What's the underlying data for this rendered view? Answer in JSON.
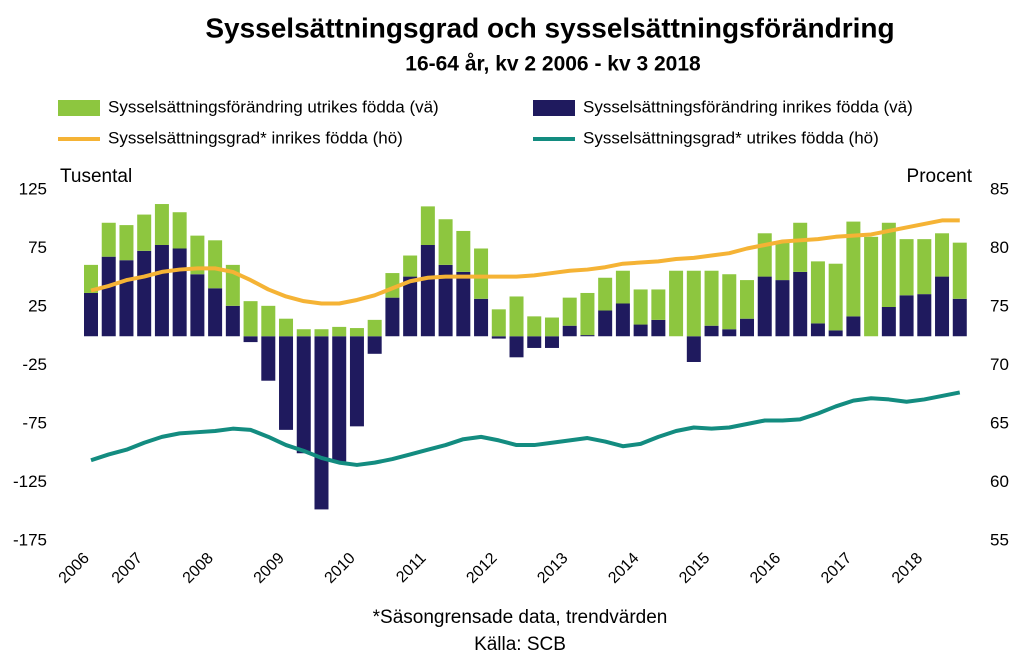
{
  "chart_data": {
    "type": "bar",
    "title": "Sysselsättningsgrad och sysselsättningsförändring",
    "subtitle": "16-64 år, kv 2 2006 - kv 3 2018",
    "y_label": "Tusental",
    "y2_label": "Procent",
    "footnote": "*Säsongrensade data, trendvärden",
    "source": "Källa: SCB",
    "categories": [
      "2006",
      null,
      null,
      "2007",
      null,
      null,
      null,
      "2008",
      null,
      null,
      null,
      "2009",
      null,
      null,
      null,
      "2010",
      null,
      null,
      null,
      "2011",
      null,
      null,
      null,
      "2012",
      null,
      null,
      null,
      "2013",
      null,
      null,
      null,
      "2014",
      null,
      null,
      null,
      "2015",
      null,
      null,
      null,
      "2016",
      null,
      null,
      null,
      "2017",
      null,
      null,
      null,
      "2018",
      null,
      null
    ],
    "ylim": [
      -175,
      125
    ],
    "yticks": [
      -175,
      -125,
      -75,
      -25,
      25,
      75,
      125
    ],
    "y2lim": [
      55,
      85
    ],
    "y2ticks": [
      55,
      60,
      65,
      70,
      75,
      80,
      85
    ],
    "grid": false,
    "series": [
      {
        "name": "Sysselsättningsförändring utrikes födda (vä)",
        "type": "bar",
        "color": "#8dc63f",
        "values": [
          24,
          29,
          30,
          31,
          35,
          31,
          33,
          41,
          35,
          30,
          26,
          15,
          6,
          6,
          8,
          7,
          14,
          21,
          18,
          33,
          39,
          35,
          43,
          23,
          34,
          17,
          16,
          24,
          36,
          28,
          28,
          30,
          26,
          56,
          56,
          47,
          47,
          33,
          37,
          32,
          42,
          53,
          57,
          81,
          85,
          72,
          48,
          47,
          37,
          48
        ]
      },
      {
        "name": "Sysselsättningsförändring inrikes födda (vä)",
        "type": "bar",
        "color": "#1f1a5e",
        "values": [
          37,
          68,
          65,
          73,
          78,
          75,
          53,
          41,
          26,
          -5,
          -38,
          -80,
          -100,
          -148,
          -107,
          -77,
          -15,
          33,
          51,
          78,
          61,
          55,
          32,
          -2,
          -18,
          -10,
          -10,
          9,
          1,
          22,
          28,
          10,
          14,
          0,
          -22,
          9,
          6,
          15,
          51,
          48,
          55,
          11,
          5,
          17,
          0,
          25,
          35,
          36,
          51,
          32
        ]
      },
      {
        "name": "Sysselsättningsgrad* inrikes födda (hö)",
        "type": "line",
        "axis": "y2",
        "color": "#f5b335",
        "values": [
          76.4,
          76.8,
          77.3,
          77.6,
          78.0,
          78.2,
          78.3,
          78.3,
          78.0,
          77.3,
          76.5,
          75.9,
          75.5,
          75.3,
          75.3,
          75.6,
          76.0,
          76.6,
          77.2,
          77.5,
          77.6,
          77.6,
          77.6,
          77.6,
          77.6,
          77.7,
          77.9,
          78.1,
          78.2,
          78.4,
          78.7,
          78.8,
          78.9,
          79.1,
          79.2,
          79.4,
          79.6,
          80.0,
          80.3,
          80.6,
          80.7,
          80.8,
          81.0,
          81.1,
          81.2,
          81.5,
          81.8,
          82.1,
          82.4,
          82.4
        ]
      },
      {
        "name": "Sysselsättningsgrad* utrikes födda (hö)",
        "type": "line",
        "axis": "y2",
        "color": "#138c80",
        "values": [
          61.9,
          62.4,
          62.8,
          63.4,
          63.9,
          64.2,
          64.3,
          64.4,
          64.6,
          64.5,
          63.9,
          63.2,
          62.7,
          62.1,
          61.7,
          61.5,
          61.7,
          62.0,
          62.4,
          62.8,
          63.2,
          63.7,
          63.9,
          63.6,
          63.2,
          63.2,
          63.4,
          63.6,
          63.8,
          63.5,
          63.1,
          63.3,
          63.9,
          64.4,
          64.7,
          64.6,
          64.7,
          65.0,
          65.3,
          65.3,
          65.4,
          65.9,
          66.5,
          67.0,
          67.2,
          67.1,
          66.9,
          67.1,
          67.4,
          67.7
        ]
      }
    ]
  }
}
